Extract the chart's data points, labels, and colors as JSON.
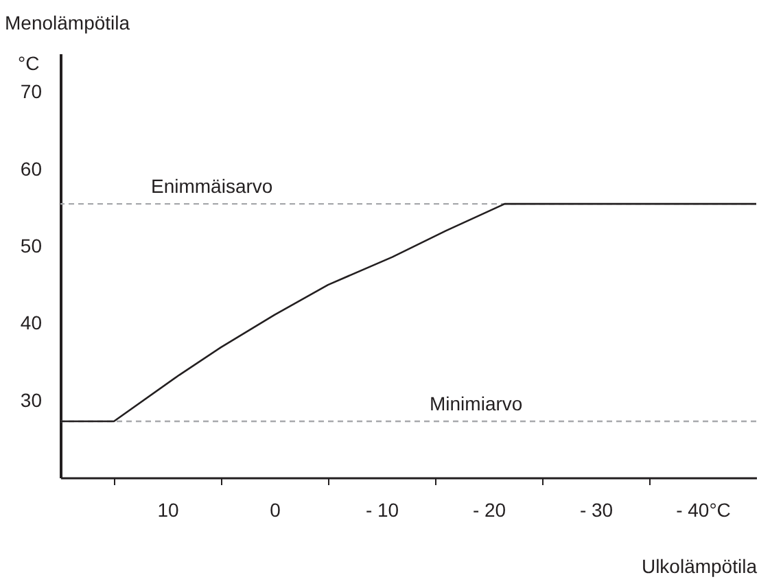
{
  "chart_data": {
    "type": "line",
    "xlabel": "Ulkolämpötila",
    "ylabel": "Menolämpötila",
    "annotations": [
      "°C"
    ],
    "x": [
      20,
      15,
      8.9,
      5,
      0,
      -5,
      -11,
      -16,
      -21.5,
      -45
    ],
    "series": [
      {
        "color": "#231f20",
        "values": [
          27.3,
          27.3,
          33.3,
          36.9,
          41.1,
          45,
          48.6,
          52,
          55.5,
          55.5
        ]
      }
    ],
    "xlim": [
      20,
      -45
    ],
    "xticks": [
      {
        "value": 15,
        "label": null
      },
      {
        "value": 10,
        "label": "10"
      },
      {
        "value": 5,
        "label": null
      },
      {
        "value": 0,
        "label": "0"
      },
      {
        "value": -5,
        "label": null
      },
      {
        "value": -10,
        "label": "- 10"
      },
      {
        "value": -15,
        "label": null
      },
      {
        "value": -20,
        "label": "- 20"
      },
      {
        "value": -25,
        "label": null
      },
      {
        "value": -30,
        "label": "- 30"
      },
      {
        "value": -35,
        "label": null
      },
      {
        "value": -40,
        "label": "- 40°C"
      }
    ],
    "ylim": [
      20,
      75
    ],
    "yticks": [
      30,
      40,
      50,
      60,
      70
    ],
    "ref_lines": [
      {
        "axis": "y",
        "value": 55.5,
        "label": "Enimmäisarvo",
        "color": "#a7a9ac",
        "line_style": "dashed"
      },
      {
        "axis": "y",
        "value": 27.3,
        "label": "Minimiarvo",
        "color": "#a7a9ac",
        "line_style": "dashed"
      }
    ],
    "grid": false,
    "marker": "none",
    "line_style": "solid"
  }
}
